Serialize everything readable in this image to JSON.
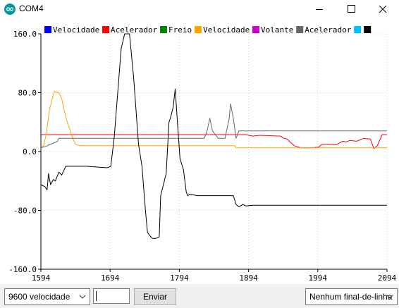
{
  "window": {
    "title": "COM4"
  },
  "legend": [
    {
      "label": "Velocidade",
      "color": "#0000ff"
    },
    {
      "label": "Acelerador",
      "color": "#ff0000"
    },
    {
      "label": "Freio",
      "color": "#008000"
    },
    {
      "label": "Velocidade",
      "color": "#ffa500"
    },
    {
      "label": "Volante",
      "color": "#cc00cc"
    },
    {
      "label": "Acelerador",
      "color": "#666666"
    },
    {
      "label": "",
      "color": "#00bfff"
    },
    {
      "label": "",
      "color": "#000000"
    }
  ],
  "chart_data": {
    "type": "line",
    "xlim": [
      1594,
      2094
    ],
    "ylim": [
      -160,
      160
    ],
    "x_ticks": [
      "1594",
      "1694",
      "1794",
      "1894",
      "1994",
      "2094"
    ],
    "y_ticks": [
      "160.0",
      "80.0",
      "0.0",
      "-80.0",
      "-160.0"
    ],
    "grid": "dotted",
    "series": [
      {
        "color": "#ff0000",
        "x": [
          1594,
          1880,
          1890,
          1900,
          1910,
          1940,
          1945,
          1950,
          1955,
          1960,
          1970,
          1985,
          1995,
          2000,
          2010,
          2020,
          2030,
          2035,
          2040,
          2050,
          2060,
          2070,
          2075,
          2080,
          2087,
          2094
        ],
        "y": [
          23,
          23,
          23,
          21,
          22,
          21,
          18,
          17,
          12,
          8,
          5,
          5,
          6,
          10,
          10,
          9,
          14,
          13,
          15,
          14,
          18,
          17,
          4,
          8,
          23,
          23
        ]
      },
      {
        "color": "#ffa500",
        "x": [
          1594,
          1598,
          1602,
          1606,
          1610,
          1612,
          1614,
          1618,
          1620,
          1624,
          1628,
          1632,
          1636,
          1640,
          1644,
          1650,
          1660,
          1670,
          1700,
          1800,
          1850,
          1874,
          1876,
          1900,
          2000,
          2094
        ],
        "y": [
          5,
          8,
          25,
          55,
          70,
          78,
          82,
          80,
          80,
          72,
          55,
          40,
          30,
          18,
          10,
          8,
          8,
          8,
          8,
          8,
          8,
          8,
          5,
          5,
          5,
          5
        ]
      },
      {
        "color": "#666666",
        "x": [
          1594,
          1604,
          1606,
          1608,
          1614,
          1618,
          1620,
          1624,
          1628,
          1630,
          1640,
          1650,
          1700,
          1800,
          1820,
          1830,
          1834,
          1838,
          1842,
          1850,
          1860,
          1866,
          1868,
          1872,
          1876,
          1880,
          1890,
          2000,
          2094
        ],
        "y": [
          5,
          8,
          10,
          10,
          12,
          14,
          18,
          18,
          18,
          18,
          18,
          18,
          18,
          18,
          18,
          18,
          28,
          45,
          28,
          18,
          18,
          45,
          65,
          45,
          18,
          28,
          28,
          28,
          28
        ]
      },
      {
        "color": "#000000",
        "x": [
          1594,
          1600,
          1603,
          1605,
          1608,
          1612,
          1615,
          1620,
          1624,
          1626,
          1630,
          1640,
          1660,
          1690,
          1695,
          1700,
          1705,
          1710,
          1715,
          1722,
          1728,
          1735,
          1740,
          1745,
          1748,
          1752,
          1755,
          1760,
          1765,
          1767,
          1775,
          1779,
          1781,
          1785,
          1788,
          1792,
          1795,
          1800,
          1804,
          1806,
          1810,
          1820,
          1840,
          1860,
          1872,
          1876,
          1880,
          1886,
          1890,
          1900,
          1950,
          2000,
          2094
        ],
        "y": [
          -45,
          -48,
          -52,
          -30,
          -45,
          -38,
          -40,
          -28,
          -32,
          -28,
          -20,
          -20,
          -20,
          -22,
          -20,
          20,
          80,
          140,
          160,
          160,
          100,
          10,
          -20,
          -80,
          -110,
          -115,
          -118,
          -118,
          -116,
          -60,
          -30,
          40,
          45,
          60,
          85,
          30,
          -10,
          -25,
          -55,
          -60,
          -58,
          -60,
          -60,
          -60,
          -60,
          -72,
          -75,
          -72,
          -74,
          -73,
          -73,
          -73,
          -73
        ]
      }
    ]
  },
  "bottom": {
    "baud": "9600 velocidade",
    "input_value": "",
    "send_label": "Enviar",
    "line_ending": "Nenhum final-de-linha"
  }
}
